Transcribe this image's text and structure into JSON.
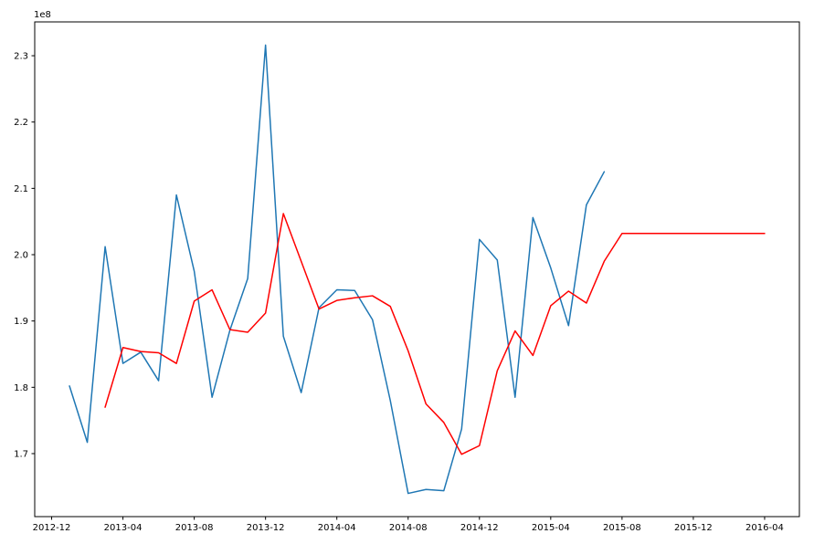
{
  "figure": {
    "background": "#ffffff",
    "spine_color": "#000000",
    "tick_color": "#000000",
    "line_width": 1.5
  },
  "chart_data": {
    "type": "line",
    "title": "",
    "xlabel": "",
    "ylabel": "",
    "y_offset_label": "1e8",
    "y_scale_factor": 100000000,
    "grid": false,
    "legend": "none",
    "x_tick_labels": [
      "2012-12",
      "2013-04",
      "2013-08",
      "2013-12",
      "2014-04",
      "2014-08",
      "2014-12",
      "2015-04",
      "2015-08",
      "2015-12",
      "2016-04"
    ],
    "y_tick_labels": [
      "1.7",
      "1.8",
      "1.9",
      "2.0",
      "2.1",
      "2.2",
      "2.3"
    ],
    "xlim_months_from_2012_12": [
      -0.95,
      41.95
    ],
    "ylim_e8": [
      1.605,
      2.351
    ],
    "series": [
      {
        "name": "blue-line",
        "color": "#1f77b4",
        "x": [
          "2013-01",
          "2013-02",
          "2013-03",
          "2013-04",
          "2013-05",
          "2013-06",
          "2013-07",
          "2013-08",
          "2013-09",
          "2013-10",
          "2013-11",
          "2013-12",
          "2014-01",
          "2014-02",
          "2014-03",
          "2014-04",
          "2014-05",
          "2014-06",
          "2014-07",
          "2014-08",
          "2014-09",
          "2014-10",
          "2014-11",
          "2014-12",
          "2015-01",
          "2015-02",
          "2015-03",
          "2015-04",
          "2015-05",
          "2015-06",
          "2015-07"
        ],
        "values_e8": [
          1.802,
          1.717,
          2.012,
          1.836,
          1.853,
          1.81,
          2.09,
          1.975,
          1.785,
          1.886,
          1.964,
          2.316,
          1.877,
          1.792,
          1.92,
          1.947,
          1.946,
          1.902,
          1.78,
          1.64,
          1.646,
          1.644,
          1.737,
          2.023,
          1.992,
          1.785,
          2.056,
          1.98,
          1.893,
          2.075,
          2.125
        ]
      },
      {
        "name": "red-line",
        "color": "#ff0000",
        "x": [
          "2013-03",
          "2013-04",
          "2013-05",
          "2013-06",
          "2013-07",
          "2013-08",
          "2013-09",
          "2013-10",
          "2013-11",
          "2013-12",
          "2014-01",
          "2014-02",
          "2014-03",
          "2014-04",
          "2014-05",
          "2014-06",
          "2014-07",
          "2014-08",
          "2014-09",
          "2014-10",
          "2014-11",
          "2014-12",
          "2015-01",
          "2015-02",
          "2015-03",
          "2015-04",
          "2015-05",
          "2015-06",
          "2015-07",
          "2015-08",
          "2015-09",
          "2015-10",
          "2015-11",
          "2015-12",
          "2016-01",
          "2016-02",
          "2016-03",
          "2016-04"
        ],
        "values_e8": [
          1.77,
          1.86,
          1.854,
          1.852,
          1.836,
          1.93,
          1.947,
          1.887,
          1.883,
          1.912,
          2.062,
          1.99,
          1.918,
          1.931,
          1.935,
          1.938,
          1.922,
          1.855,
          1.775,
          1.747,
          1.699,
          1.712,
          1.825,
          1.885,
          1.848,
          1.923,
          1.945,
          1.927,
          1.99,
          2.032,
          2.032,
          2.032,
          2.032,
          2.032,
          2.032,
          2.032,
          2.032,
          2.032
        ]
      }
    ]
  }
}
